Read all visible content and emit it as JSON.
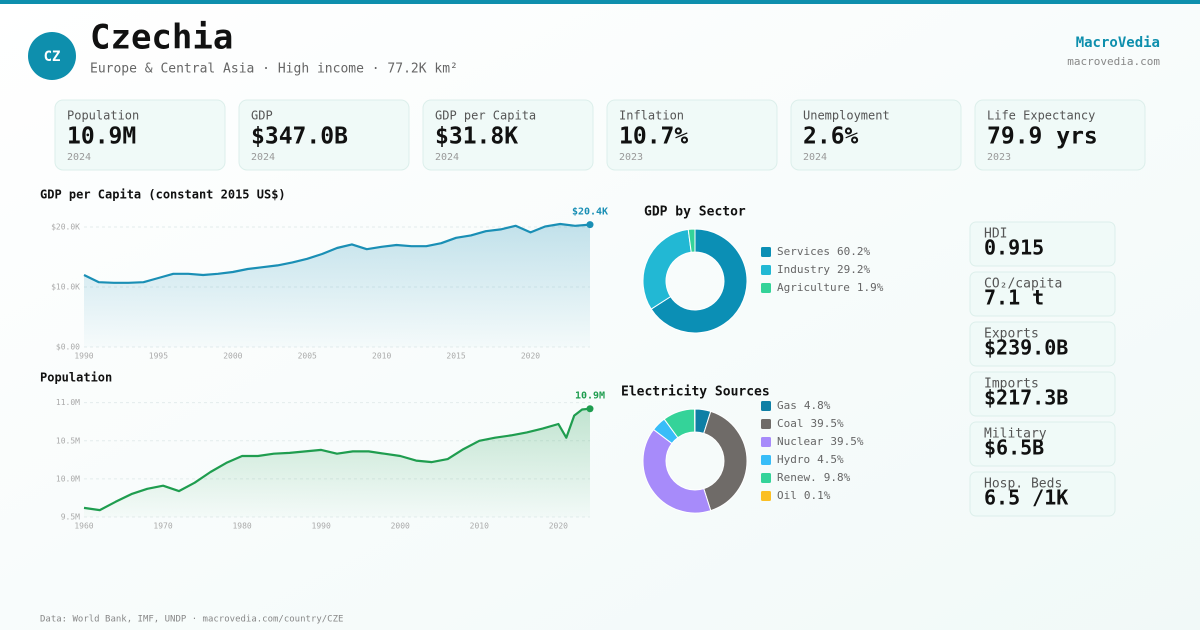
{
  "header": {
    "badge": "CZ",
    "title": "Czechia",
    "subtitle": "Europe & Central Asia · High income · 77.2K km²",
    "brand": "MacroVedia",
    "site": "macrovedia.com"
  },
  "kpis": [
    {
      "label": "Population",
      "value": "10.9M",
      "year": "2024"
    },
    {
      "label": "GDP",
      "value": "$347.0B",
      "year": "2024"
    },
    {
      "label": "GDP per Capita",
      "value": "$31.8K",
      "year": "2024"
    },
    {
      "label": "Inflation",
      "value": "10.7%",
      "year": "2023"
    },
    {
      "label": "Unemployment",
      "value": "2.6%",
      "year": "2024"
    },
    {
      "label": "Life Expectancy",
      "value": "79.9 yrs",
      "year": "2023"
    }
  ],
  "side_stats": [
    {
      "label": "HDI",
      "value": "0.915"
    },
    {
      "label": "CO₂/capita",
      "value": "7.1 t"
    },
    {
      "label": "Exports",
      "value": "$239.0B"
    },
    {
      "label": "Imports",
      "value": "$217.3B"
    },
    {
      "label": "Military",
      "value": "$6.5B"
    },
    {
      "label": "Hosp. Beds",
      "value": "6.5 /1K"
    }
  ],
  "footer": "Data: World Bank, IMF, UNDP · macrovedia.com/country/CZE",
  "chart_data": [
    {
      "type": "line",
      "title": "GDP per Capita (constant 2015 US$)",
      "color": "#1a8fb5",
      "x": [
        1990,
        1991,
        1992,
        1993,
        1994,
        1995,
        1996,
        1997,
        1998,
        1999,
        2000,
        2001,
        2002,
        2003,
        2004,
        2005,
        2006,
        2007,
        2008,
        2009,
        2010,
        2011,
        2012,
        2013,
        2014,
        2015,
        2016,
        2017,
        2018,
        2019,
        2020,
        2021,
        2022,
        2023,
        2024
      ],
      "values": [
        12000,
        10800,
        10700,
        10700,
        10800,
        11500,
        12200,
        12200,
        12000,
        12200,
        12500,
        13000,
        13300,
        13600,
        14100,
        14700,
        15500,
        16500,
        17100,
        16300,
        16700,
        17000,
        16800,
        16800,
        17300,
        18200,
        18600,
        19300,
        19600,
        20200,
        19100,
        20100,
        20500,
        20200,
        20400
      ],
      "value_labels": [
        null,
        null,
        null,
        null,
        null,
        null,
        null,
        null,
        null,
        null,
        null,
        null,
        null,
        null,
        null,
        null,
        null,
        null,
        null,
        null,
        null,
        null,
        null,
        null,
        null,
        null,
        null,
        null,
        null,
        null,
        null,
        null,
        null,
        null,
        "$20.4K"
      ],
      "xlim": [
        1990,
        2024
      ],
      "xticks": [
        1990,
        1995,
        2000,
        2005,
        2010,
        2015,
        2020
      ],
      "ylim": [
        0,
        23000
      ],
      "yticks": [
        {
          "value": 0,
          "label": "$0.00"
        },
        {
          "value": 10000,
          "label": "$10.0K"
        },
        {
          "value": 20000,
          "label": "$20.0K"
        }
      ],
      "grid": true
    },
    {
      "type": "line",
      "title": "Population",
      "color": "#1f9d4f",
      "x": [
        1960,
        1962,
        1964,
        1966,
        1968,
        1970,
        1972,
        1974,
        1976,
        1978,
        1980,
        1982,
        1984,
        1986,
        1988,
        1990,
        1992,
        1994,
        1996,
        1998,
        2000,
        2002,
        2004,
        2006,
        2008,
        2010,
        2012,
        2014,
        2016,
        2018,
        2020,
        2021,
        2022,
        2023,
        2024
      ],
      "values": [
        9620000,
        9590000,
        9700000,
        9800000,
        9870000,
        9910000,
        9840000,
        9950000,
        10090000,
        10210000,
        10300000,
        10300000,
        10330000,
        10340000,
        10360000,
        10380000,
        10330000,
        10360000,
        10360000,
        10330000,
        10300000,
        10240000,
        10220000,
        10260000,
        10390000,
        10500000,
        10540000,
        10570000,
        10610000,
        10660000,
        10720000,
        10540000,
        10830000,
        10910000,
        10920000
      ],
      "value_labels": [
        null,
        null,
        null,
        null,
        null,
        null,
        null,
        null,
        null,
        null,
        null,
        null,
        null,
        null,
        null,
        null,
        null,
        null,
        null,
        null,
        null,
        null,
        null,
        null,
        null,
        null,
        null,
        null,
        null,
        null,
        null,
        null,
        null,
        null,
        "10.9M"
      ],
      "xlim": [
        1960,
        2024
      ],
      "xticks": [
        1960,
        1970,
        1980,
        1990,
        2000,
        2010,
        2020
      ],
      "ylim": [
        9500000,
        11100000
      ],
      "yticks": [
        {
          "value": 9500000,
          "label": "9.5M"
        },
        {
          "value": 10000000,
          "label": "10.0M"
        },
        {
          "value": 10500000,
          "label": "10.5M"
        },
        {
          "value": 11000000,
          "label": "11.0M"
        }
      ],
      "grid": true
    },
    {
      "type": "donut",
      "title": "GDP by Sector",
      "categories": [
        "Services",
        "Industry",
        "Agriculture"
      ],
      "values": [
        60.2,
        29.2,
        1.9
      ],
      "value_labels": [
        "60.2%",
        "29.2%",
        "1.9%"
      ],
      "colors": [
        "#0b8fb5",
        "#22b8d4",
        "#34d399"
      ]
    },
    {
      "type": "donut",
      "title": "Electricity Sources",
      "categories": [
        "Gas",
        "Coal",
        "Nuclear",
        "Hydro",
        "Renew.",
        "Oil"
      ],
      "values": [
        4.8,
        39.5,
        39.5,
        4.5,
        9.8,
        0.1
      ],
      "value_labels": [
        "4.8%",
        "39.5%",
        "39.5%",
        "4.5%",
        "9.8%",
        "0.1%"
      ],
      "colors": [
        "#0e7fa5",
        "#6f6b68",
        "#a78bfa",
        "#38bdf8",
        "#34d399",
        "#fbbf24"
      ]
    }
  ]
}
